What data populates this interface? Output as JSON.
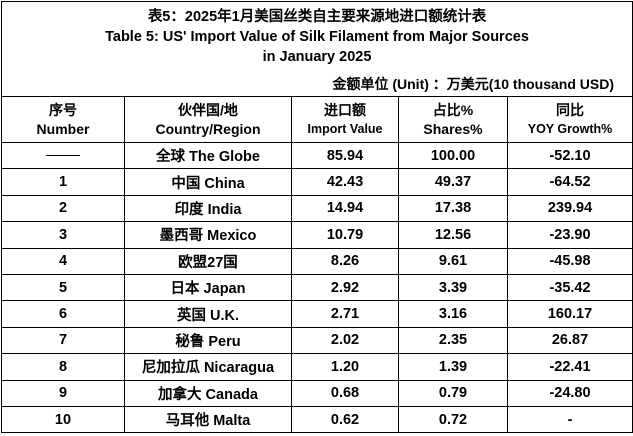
{
  "title": {
    "cn": "表5：2025年1月美国丝类自主要来源地进口额统计表",
    "en_line1": "Table 5: US' Import Value of Silk Filament from Major Sources",
    "en_line2": "in January 2025"
  },
  "unit": "金额单位 (Unit) ：万美元(10 thousand USD)",
  "headers": [
    {
      "cn": "序号",
      "en": "Number"
    },
    {
      "cn": "伙伴国/地",
      "en": "Country/Region"
    },
    {
      "cn": "进口额",
      "en": "Import Value"
    },
    {
      "cn": "占比%",
      "en": "Shares%"
    },
    {
      "cn": "同比",
      "en": "YOY Growth%"
    }
  ],
  "rows": [
    {
      "number": "",
      "country": "全球 The Globe",
      "value": "85.94",
      "share": "100.00",
      "yoy": "-52.10"
    },
    {
      "number": "1",
      "country": "中国 China",
      "value": "42.43",
      "share": "49.37",
      "yoy": "-64.52"
    },
    {
      "number": "2",
      "country": "印度 India",
      "value": "14.94",
      "share": "17.38",
      "yoy": "239.94"
    },
    {
      "number": "3",
      "country": "墨西哥 Mexico",
      "value": "10.79",
      "share": "12.56",
      "yoy": "-23.90"
    },
    {
      "number": "4",
      "country": "欧盟27国",
      "value": "8.26",
      "share": "9.61",
      "yoy": "-45.98"
    },
    {
      "number": "5",
      "country": "日本 Japan",
      "value": "2.92",
      "share": "3.39",
      "yoy": "-35.42"
    },
    {
      "number": "6",
      "country": "英国 U.K.",
      "value": "2.71",
      "share": "3.16",
      "yoy": "160.17"
    },
    {
      "number": "7",
      "country": "秘鲁 Peru",
      "value": "2.02",
      "share": "2.35",
      "yoy": "26.87"
    },
    {
      "number": "8",
      "country": "尼加拉瓜 Nicaragua",
      "value": "1.20",
      "share": "1.39",
      "yoy": "-22.41"
    },
    {
      "number": "9",
      "country": "加拿大 Canada",
      "value": "0.68",
      "share": "0.79",
      "yoy": "-24.80"
    },
    {
      "number": "10",
      "country": "马耳他 Malta",
      "value": "0.62",
      "share": "0.72",
      "yoy": "-"
    }
  ]
}
